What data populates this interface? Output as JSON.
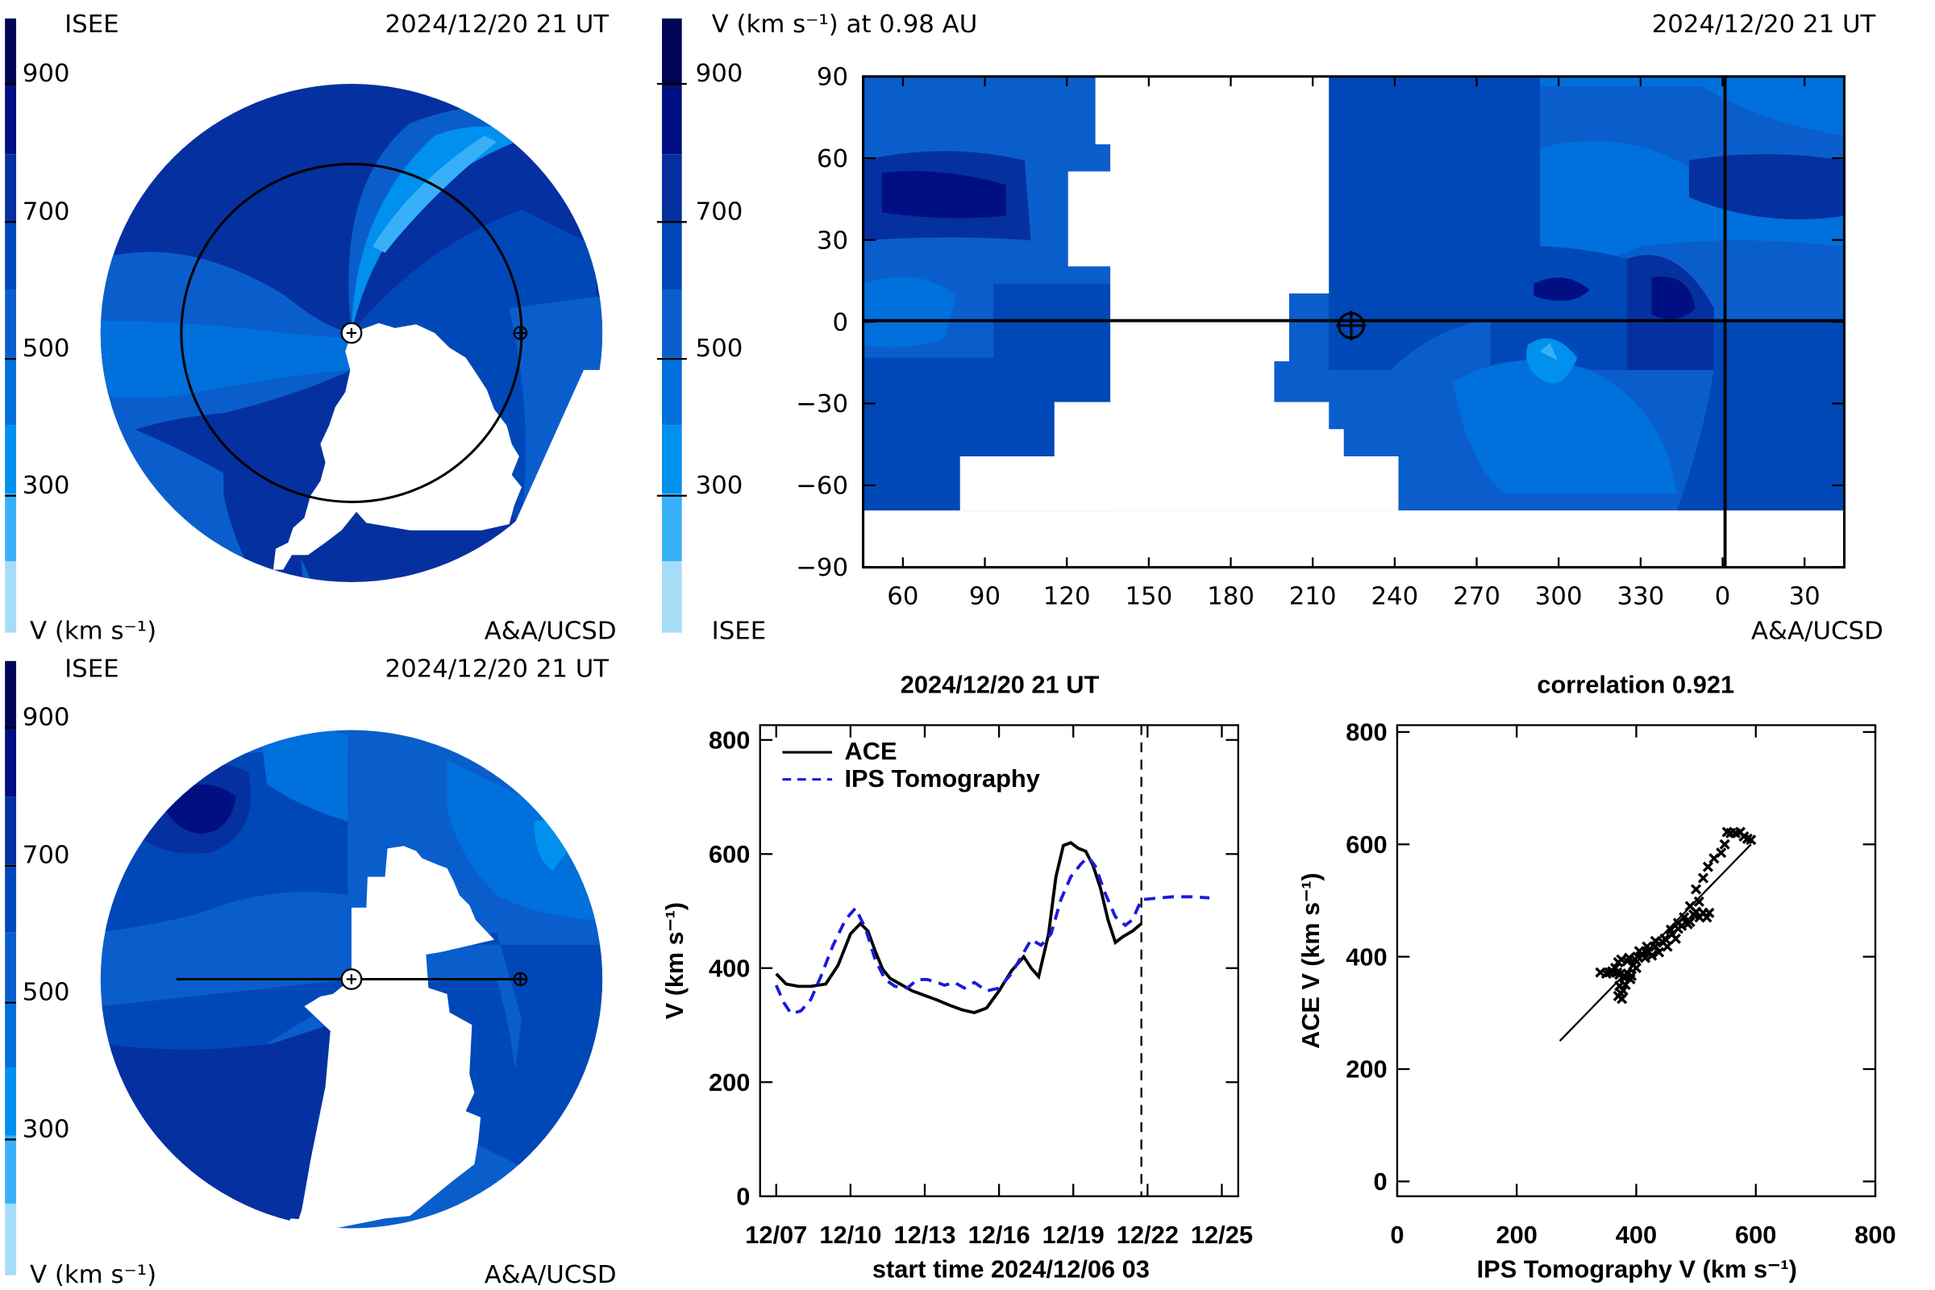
{
  "colors": {
    "scale": [
      "#a6dcf8",
      "#38b0f8",
      "#0090ee",
      "#0070dc",
      "#0a5ecc",
      "#0048b8",
      "#0530a0",
      "#000f82",
      "#000455",
      "#000020"
    ],
    "white": "#ffffff",
    "ace": "#000000",
    "ips": "#1a1adc"
  },
  "panels": {
    "top_left": {
      "label_left": "ISEE",
      "timestamp": "2024/12/20 21 UT",
      "unit_label": "V (km s⁻¹)",
      "credit": "A&A/UCSD",
      "colorbar_ticks": [
        "900",
        "700",
        "500",
        "300"
      ]
    },
    "top_right": {
      "map_title": "V (km s⁻¹) at 0.98 AU",
      "timestamp": "2024/12/20 21 UT",
      "label_left": "ISEE",
      "credit": "A&A/UCSD",
      "colorbar_ticks": [
        "900",
        "700",
        "500",
        "300"
      ],
      "y_ticks": [
        "90",
        "60",
        "30",
        "0",
        "−30",
        "−60",
        "−90"
      ],
      "x_ticks": [
        "60",
        "90",
        "120",
        "150",
        "180",
        "210",
        "240",
        "270",
        "300",
        "330",
        "0",
        "30"
      ]
    },
    "bottom_left": {
      "label_left": "ISEE",
      "timestamp": "2024/12/20 21 UT",
      "unit_label": "V (km s⁻¹)",
      "credit": "A&A/UCSD",
      "colorbar_ticks": [
        "900",
        "700",
        "500",
        "300"
      ]
    }
  },
  "chart_data": [
    {
      "type": "line",
      "title": "2024/12/20 21 UT",
      "xlabel": "start time 2024/12/06 03",
      "ylabel": "V (km s⁻¹)",
      "x_tick_labels": [
        "12/07",
        "12/10",
        "12/13",
        "12/16",
        "12/19",
        "12/22",
        "12/25"
      ],
      "y_tick_labels": [
        "800",
        "600",
        "400",
        "200",
        "0"
      ],
      "ylim": [
        0,
        800
      ],
      "x_unit": "days",
      "xlim": [
        0,
        19.2
      ],
      "legend_position": "top-left",
      "vline_at": 14.75,
      "series": [
        {
          "name": "ACE",
          "style": "solid",
          "x": [
            0,
            0.4,
            0.9,
            1.4,
            2.0,
            2.5,
            3.0,
            3.4,
            3.7,
            4.0,
            4.3,
            4.6,
            5.0,
            5.5,
            6.0,
            6.5,
            7.0,
            7.5,
            8.0,
            8.5,
            9.0,
            9.5,
            10.0,
            10.3,
            10.6,
            11.0,
            11.3,
            11.6,
            11.9,
            12.2,
            12.5,
            12.8,
            13.1,
            13.4,
            13.7,
            14.0,
            14.4,
            14.75
          ],
          "y": [
            390,
            372,
            368,
            368,
            372,
            405,
            460,
            478,
            465,
            430,
            398,
            382,
            372,
            360,
            352,
            344,
            335,
            327,
            322,
            330,
            360,
            395,
            420,
            400,
            385,
            460,
            560,
            615,
            620,
            610,
            605,
            580,
            540,
            485,
            445,
            455,
            465,
            478
          ]
        },
        {
          "name": "IPS Tomography",
          "style": "dashed",
          "x": [
            0,
            0.3,
            0.6,
            1.0,
            1.4,
            1.8,
            2.3,
            2.8,
            3.2,
            3.6,
            4.0,
            4.4,
            4.8,
            5.3,
            5.7,
            6.1,
            6.5,
            6.8,
            7.2,
            7.6,
            8.0,
            8.5,
            9.0,
            9.5,
            9.9,
            10.3,
            10.7,
            11.1,
            11.5,
            11.9,
            12.3,
            12.6,
            12.9,
            13.3,
            13.7,
            14.1,
            14.4,
            14.75,
            15.2,
            16.0,
            16.8,
            17.5
          ],
          "y": [
            370,
            340,
            320,
            325,
            345,
            385,
            440,
            485,
            505,
            470,
            415,
            380,
            368,
            365,
            380,
            380,
            375,
            370,
            375,
            365,
            375,
            360,
            365,
            390,
            420,
            450,
            440,
            460,
            520,
            560,
            582,
            595,
            578,
            530,
            490,
            475,
            485,
            520,
            522,
            525,
            525,
            523
          ]
        }
      ]
    },
    {
      "type": "scatter",
      "title": "correlation 0.921",
      "xlabel": "IPS Tomography V (km s⁻¹)",
      "ylabel": "ACE V (km s⁻¹)",
      "x_tick_labels": [
        "0",
        "200",
        "400",
        "600",
        "800"
      ],
      "y_tick_labels": [
        "800",
        "600",
        "400",
        "200",
        "0"
      ],
      "xlim": [
        0,
        800
      ],
      "ylim": [
        0,
        800
      ],
      "points": [
        [
          340,
          372
        ],
        [
          350,
          370
        ],
        [
          355,
          372
        ],
        [
          360,
          374
        ],
        [
          368,
          372
        ],
        [
          372,
          368
        ],
        [
          380,
          366
        ],
        [
          386,
          370
        ],
        [
          392,
          366
        ],
        [
          370,
          390
        ],
        [
          375,
          395
        ],
        [
          385,
          392
        ],
        [
          395,
          385
        ],
        [
          400,
          380
        ],
        [
          365,
          380
        ],
        [
          372,
          348
        ],
        [
          374,
          335
        ],
        [
          376,
          325
        ],
        [
          370,
          330
        ],
        [
          378,
          340
        ],
        [
          382,
          350
        ],
        [
          380,
          362
        ],
        [
          390,
          360
        ],
        [
          402,
          400
        ],
        [
          410,
          405
        ],
        [
          415,
          398
        ],
        [
          420,
          410
        ],
        [
          426,
          402
        ],
        [
          432,
          418
        ],
        [
          438,
          408
        ],
        [
          445,
          425
        ],
        [
          452,
          418
        ],
        [
          460,
          440
        ],
        [
          466,
          432
        ],
        [
          470,
          450
        ],
        [
          476,
          455
        ],
        [
          480,
          470
        ],
        [
          486,
          458
        ],
        [
          490,
          462
        ],
        [
          496,
          475
        ],
        [
          500,
          480
        ],
        [
          506,
          470
        ],
        [
          512,
          478
        ],
        [
          518,
          470
        ],
        [
          522,
          478
        ],
        [
          470,
          460
        ],
        [
          490,
          490
        ],
        [
          505,
          498
        ],
        [
          500,
          520
        ],
        [
          512,
          540
        ],
        [
          520,
          560
        ],
        [
          530,
          575
        ],
        [
          542,
          585
        ],
        [
          548,
          600
        ],
        [
          552,
          622
        ],
        [
          558,
          620
        ],
        [
          566,
          620
        ],
        [
          574,
          622
        ],
        [
          580,
          614
        ],
        [
          586,
          610
        ],
        [
          592,
          608
        ],
        [
          448,
          432
        ],
        [
          458,
          448
        ],
        [
          432,
          428
        ],
        [
          418,
          418
        ],
        [
          405,
          410
        ],
        [
          398,
          395
        ],
        [
          388,
          398
        ]
      ],
      "fit_line": {
        "x1": 272,
        "y1": 250,
        "x2": 592,
        "y2": 600
      }
    }
  ]
}
